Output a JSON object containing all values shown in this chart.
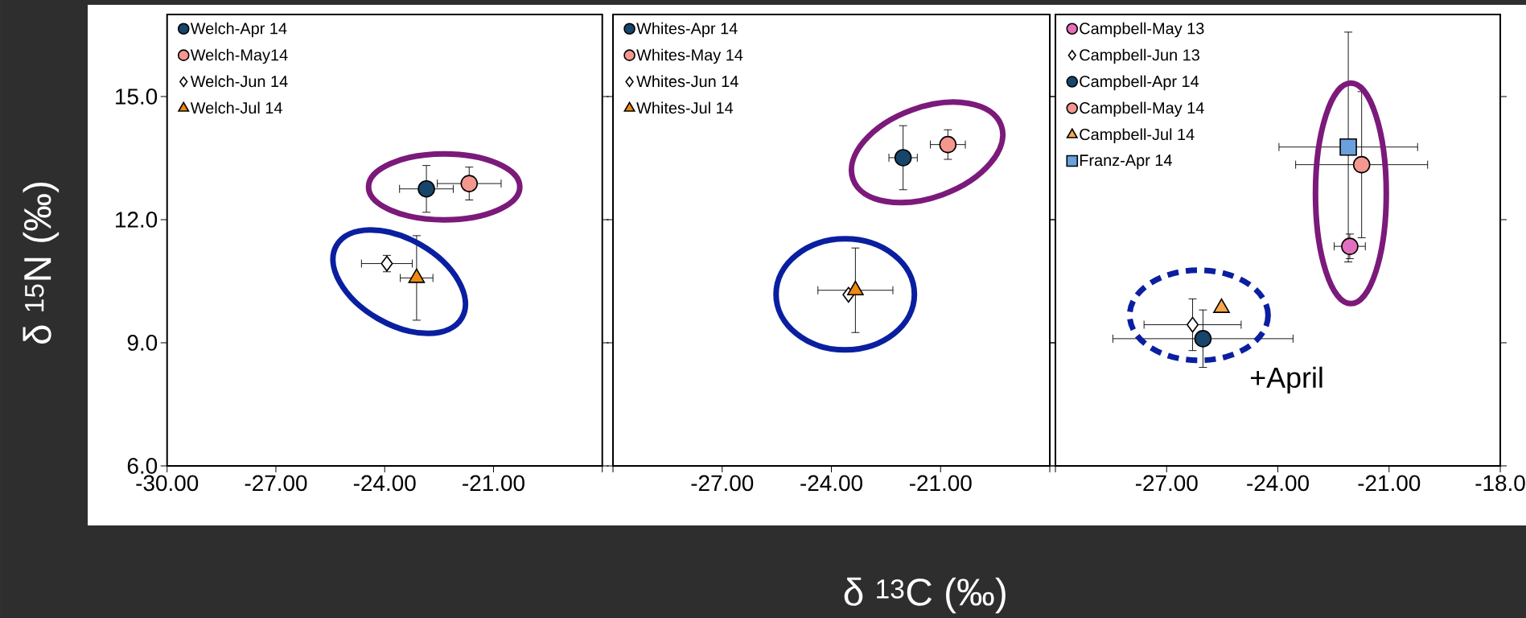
{
  "chart_data": [
    {
      "type": "scatter",
      "ylabel": "δ $^{15}$N (‰)",
      "xlim": [
        -30,
        -18
      ],
      "ylim": [
        6,
        17
      ],
      "legend": "top left",
      "xticks": [
        {
          "value": -30,
          "label": "-30.00"
        },
        {
          "value": -27,
          "label": "-27.00"
        },
        {
          "value": -24,
          "label": "-24.00"
        },
        {
          "value": -21,
          "label": "-21.00"
        },
        {
          "value": -18,
          "label": null
        }
      ],
      "yticks": [
        {
          "value": 6,
          "label": "6.0"
        },
        {
          "value": 9,
          "label": "9.0"
        },
        {
          "value": 12,
          "label": "12.0"
        },
        {
          "value": 15,
          "label": "15.0"
        }
      ],
      "series": [
        {
          "name": "Welch-Apr 14",
          "color": "#17456b",
          "marker": "circle",
          "x": [
            -22.85
          ],
          "values": [
            12.75
          ],
          "xerrors": [
            0.74
          ],
          "errors": [
            0.57
          ]
        },
        {
          "name": "Welch-May14",
          "color": "#f4978e",
          "marker": "circle",
          "x": [
            -21.67
          ],
          "values": [
            12.88
          ],
          "xerrors": [
            0.88
          ],
          "errors": [
            0.4
          ]
        },
        {
          "name": "Welch-Jun 14",
          "color": "#ffffff",
          "marker": "diamond",
          "x": [
            -23.94
          ],
          "values": [
            10.93
          ],
          "xerrors": [
            0.7
          ],
          "errors": [
            0.2
          ]
        },
        {
          "name": "Welch-Jul 14",
          "color": "#ee8a10",
          "marker": "triangle",
          "x": [
            -23.12
          ],
          "values": [
            10.58
          ],
          "xerrors": [
            0.45
          ],
          "errors": [
            1.03
          ]
        }
      ]
    },
    {
      "type": "scatter",
      "xlabel": "δ $^{13}$C (‰)",
      "xlim": [
        -30,
        -18
      ],
      "ylim": [
        6,
        17
      ],
      "legend": "top left",
      "tick_labels": "x",
      "xticks": [
        {
          "value": -30,
          "label": null
        },
        {
          "value": -27,
          "label": "-27.00"
        },
        {
          "value": -24,
          "label": "-24.00"
        },
        {
          "value": -21,
          "label": "-21.00"
        },
        {
          "value": -18,
          "label": null
        }
      ],
      "yticks": [
        {
          "value": 6,
          "label": null
        },
        {
          "value": 9,
          "label": null
        },
        {
          "value": 12,
          "label": null
        },
        {
          "value": 15,
          "label": null
        }
      ],
      "series": [
        {
          "name": "Whites-Apr 14",
          "color": "#17456b",
          "marker": "circle",
          "x": [
            -22.03
          ],
          "values": [
            13.51
          ],
          "xerrors": [
            0.39
          ],
          "errors": [
            0.78
          ]
        },
        {
          "name": "Whites-May 14",
          "color": "#f4978e",
          "marker": "circle",
          "x": [
            -20.8
          ],
          "values": [
            13.83
          ],
          "xerrors": [
            0.48
          ],
          "errors": [
            0.36
          ]
        },
        {
          "name": "Whites-Jun 14",
          "color": "#ffffff",
          "marker": "diamond",
          "x": [
            -23.53
          ],
          "values": [
            10.17
          ]
        },
        {
          "name": "Whites-Jul 14",
          "color": "#ee8a10",
          "marker": "triangle",
          "x": [
            -23.34
          ],
          "values": [
            10.28
          ],
          "xerrors": [
            1.03
          ],
          "errors": [
            1.03
          ]
        }
      ]
    },
    {
      "type": "scatter",
      "xlim": [
        -30,
        -18
      ],
      "ylim": [
        6,
        17
      ],
      "legend": "top left",
      "tick_labels": "x",
      "xticks": [
        {
          "value": -30,
          "label": null
        },
        {
          "value": -27,
          "label": "-27.00"
        },
        {
          "value": -24,
          "label": "-24.00"
        },
        {
          "value": -21,
          "label": "-21.00"
        },
        {
          "value": -18,
          "label": "-18.0"
        }
      ],
      "yticks": [
        {
          "value": 6,
          "label": null
        },
        {
          "value": 9,
          "label": null
        },
        {
          "value": 12,
          "label": null
        },
        {
          "value": 15,
          "label": null
        }
      ],
      "annotations": [
        "+April"
      ],
      "series": [
        {
          "name": "Campbell-May 13",
          "color": "#e46fbe",
          "marker": "circle",
          "x": [
            -22.06
          ],
          "values": [
            11.35
          ],
          "xerrors": [
            0.42
          ],
          "errors": [
            0.3
          ]
        },
        {
          "name": "Campbell-Jun 13",
          "color": "#ffffff",
          "marker": "diamond",
          "x": [
            -26.3
          ],
          "values": [
            9.44
          ],
          "xerrors": [
            1.31
          ],
          "errors": [
            0.63
          ]
        },
        {
          "name": "Campbell-Apr 14",
          "color": "#17456b",
          "marker": "circle",
          "x": [
            -26.02
          ],
          "values": [
            9.1
          ],
          "xerrors": [
            2.43
          ],
          "errors": [
            0.7
          ]
        },
        {
          "name": "Campbell-May 14",
          "color": "#f4978e",
          "marker": "circle",
          "x": [
            -21.74
          ],
          "values": [
            13.34
          ],
          "xerrors": [
            1.78
          ],
          "errors": [
            1.78
          ]
        },
        {
          "name": "Campbell-Jul 14",
          "color": "#f8a84a",
          "marker": "triangle",
          "x": [
            -25.52
          ],
          "values": [
            9.85
          ]
        },
        {
          "name": "Franz-Apr 14",
          "color": "#6aa1dc",
          "marker": "square",
          "x": [
            -22.1
          ],
          "values": [
            13.77
          ],
          "xerrors": [
            1.87
          ],
          "errors": [
            2.8
          ]
        }
      ]
    }
  ]
}
